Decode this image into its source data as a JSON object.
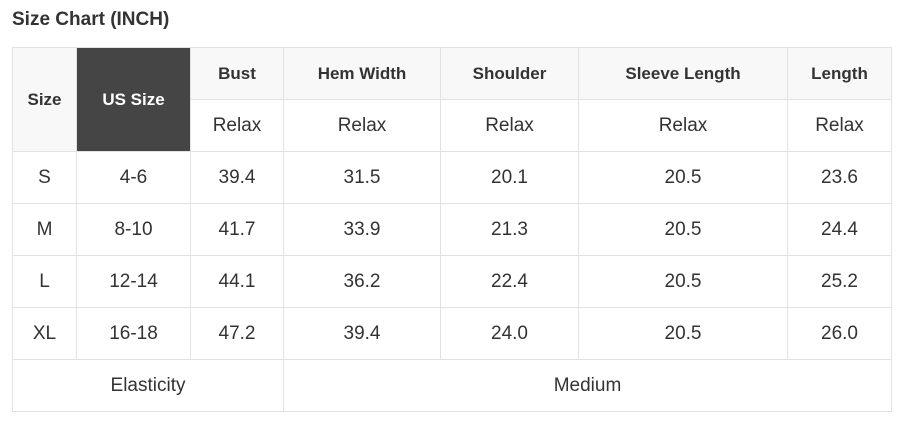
{
  "title": "Size Chart (INCH)",
  "header": {
    "size": "Size",
    "us_size": "US Size",
    "measures": [
      "Bust",
      "Hem Width",
      "Shoulder",
      "Sleeve Length",
      "Length"
    ],
    "sub": [
      "Relax",
      "Relax",
      "Relax",
      "Relax",
      "Relax"
    ]
  },
  "rows": [
    [
      "S",
      "4-6",
      "39.4",
      "31.5",
      "20.1",
      "20.5",
      "23.6"
    ],
    [
      "M",
      "8-10",
      "41.7",
      "33.9",
      "21.3",
      "20.5",
      "24.4"
    ],
    [
      "L",
      "12-14",
      "44.1",
      "36.2",
      "22.4",
      "20.5",
      "25.2"
    ],
    [
      "XL",
      "16-18",
      "47.2",
      "39.4",
      "24.0",
      "20.5",
      "26.0"
    ]
  ],
  "footer": {
    "label": "Elasticity",
    "value": "Medium"
  },
  "colors": {
    "us_size_header_bg": "#454545",
    "header_bg": "#f8f8f8",
    "border": "#e2e2e2"
  }
}
